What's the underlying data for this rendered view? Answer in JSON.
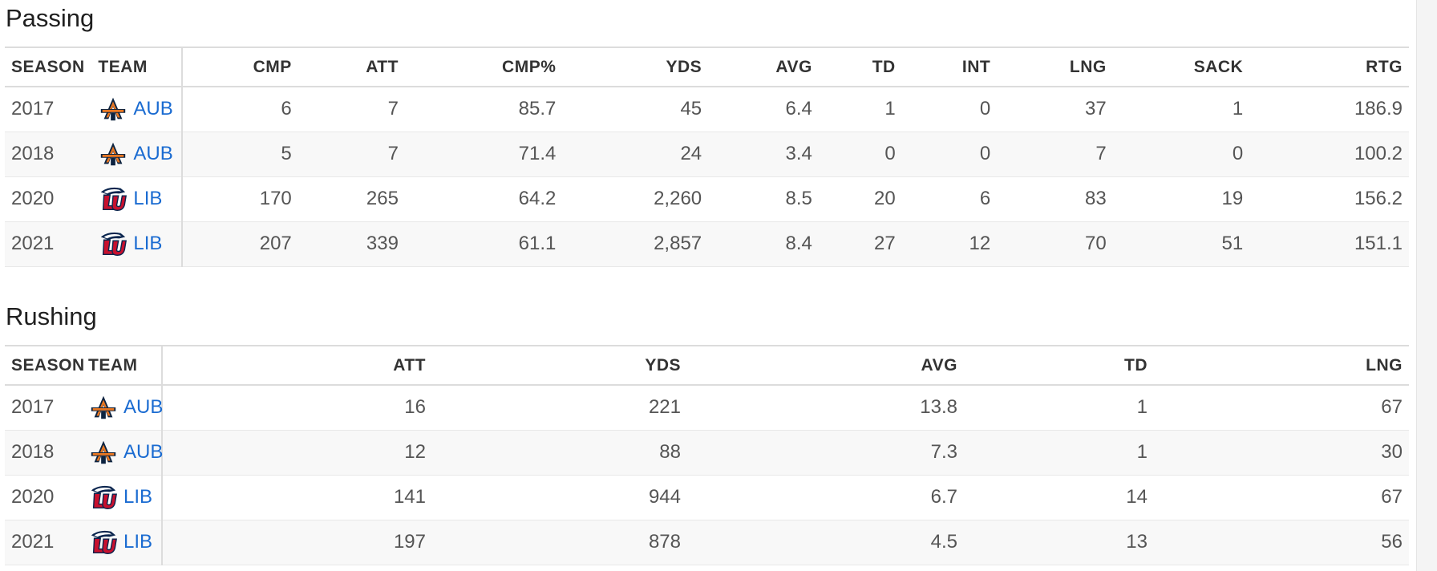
{
  "passing": {
    "title": "Passing",
    "columns": [
      "SEASON",
      "TEAM",
      "CMP",
      "ATT",
      "CMP%",
      "YDS",
      "AVG",
      "TD",
      "INT",
      "LNG",
      "SACK",
      "RTG"
    ],
    "rows": [
      {
        "season": "2017",
        "team": "AUB",
        "logo": "auburn-logo-icon",
        "cmp": "6",
        "att": "7",
        "cmp_pct": "85.7",
        "yds": "45",
        "avg": "6.4",
        "td": "1",
        "int": "0",
        "lng": "37",
        "sack": "1",
        "rtg": "186.9"
      },
      {
        "season": "2018",
        "team": "AUB",
        "logo": "auburn-logo-icon",
        "cmp": "5",
        "att": "7",
        "cmp_pct": "71.4",
        "yds": "24",
        "avg": "3.4",
        "td": "0",
        "int": "0",
        "lng": "7",
        "sack": "0",
        "rtg": "100.2"
      },
      {
        "season": "2020",
        "team": "LIB",
        "logo": "liberty-logo-icon",
        "cmp": "170",
        "att": "265",
        "cmp_pct": "64.2",
        "yds": "2,260",
        "avg": "8.5",
        "td": "20",
        "int": "6",
        "lng": "83",
        "sack": "19",
        "rtg": "156.2"
      },
      {
        "season": "2021",
        "team": "LIB",
        "logo": "liberty-logo-icon",
        "cmp": "207",
        "att": "339",
        "cmp_pct": "61.1",
        "yds": "2,857",
        "avg": "8.4",
        "td": "27",
        "int": "12",
        "lng": "70",
        "sack": "51",
        "rtg": "151.1"
      }
    ]
  },
  "rushing": {
    "title": "Rushing",
    "columns": [
      "SEASON",
      "TEAM",
      "ATT",
      "YDS",
      "AVG",
      "TD",
      "LNG"
    ],
    "rows": [
      {
        "season": "2017",
        "team": "AUB",
        "logo": "auburn-logo-icon",
        "att": "16",
        "yds": "221",
        "avg": "13.8",
        "td": "1",
        "lng": "67"
      },
      {
        "season": "2018",
        "team": "AUB",
        "logo": "auburn-logo-icon",
        "att": "12",
        "yds": "88",
        "avg": "7.3",
        "td": "1",
        "lng": "30"
      },
      {
        "season": "2020",
        "team": "LIB",
        "logo": "liberty-logo-icon",
        "att": "141",
        "yds": "944",
        "avg": "6.7",
        "td": "14",
        "lng": "67"
      },
      {
        "season": "2021",
        "team": "LIB",
        "logo": "liberty-logo-icon",
        "att": "197",
        "yds": "878",
        "avg": "4.5",
        "td": "13",
        "lng": "56"
      }
    ]
  },
  "colors": {
    "link": "#1a6bd1",
    "auburn_navy": "#0c2340",
    "auburn_orange": "#e87722",
    "liberty_red": "#c8102e",
    "liberty_navy": "#0a254e"
  }
}
